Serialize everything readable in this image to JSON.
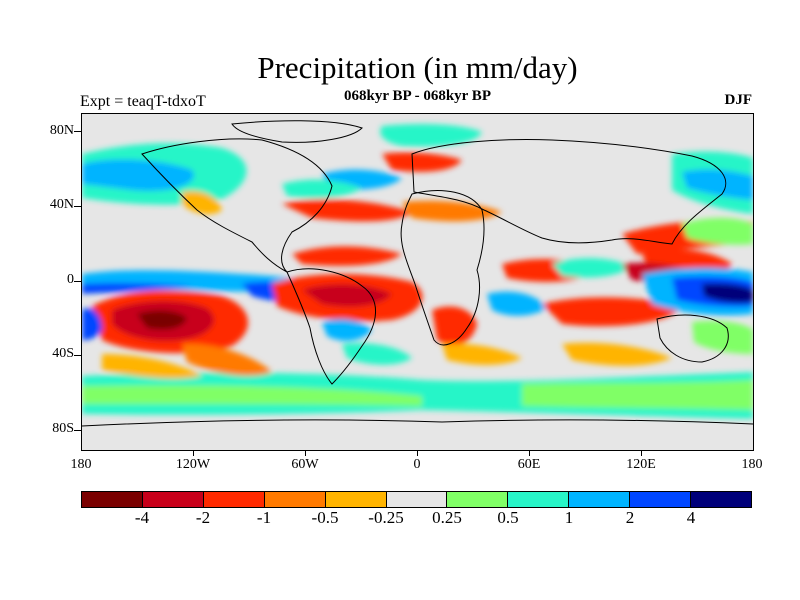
{
  "header": {
    "title": "Precipitation (in mm/day)",
    "subtitle": "068kyr BP - 068kyr BP",
    "left_string": "Expt = teaqT-tdxoT",
    "season": "DJF"
  },
  "map": {
    "projection": "cylindrical-equidistant",
    "lat_range": [
      -90,
      90
    ],
    "lon_range": [
      -180,
      180
    ],
    "lat_labels": [
      "80N",
      "40N",
      "0",
      "40S",
      "80S"
    ],
    "lon_labels": [
      "180",
      "120W",
      "60W",
      "0",
      "60E",
      "120E",
      "180"
    ],
    "background_color": "#e6e6e6",
    "coastlines": "black"
  },
  "colorbar": {
    "colors": [
      "#7a0000",
      "#c8001a",
      "#ff2a00",
      "#ff7a00",
      "#ffb400",
      "#e6e6e6",
      "#80ff66",
      "#28f5c8",
      "#00b4ff",
      "#0046ff",
      "#00007a"
    ],
    "labels": [
      "-4",
      "-2",
      "-1",
      "-0.5",
      "-0.25",
      "0.25",
      "0.5",
      "1",
      "2",
      "4"
    ]
  }
}
